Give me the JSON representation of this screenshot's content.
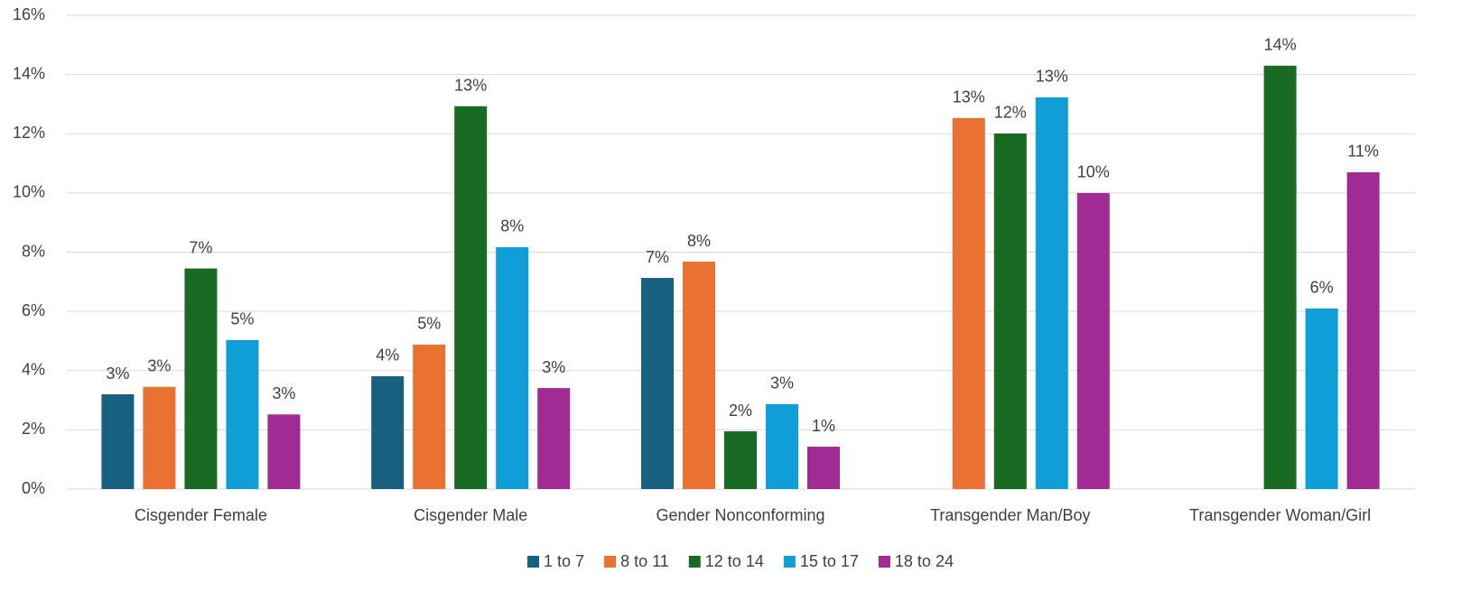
{
  "chart_data": {
    "type": "bar",
    "categories": [
      "Cisgender Female",
      "Cisgender Male",
      "Gender Nonconforming",
      "Transgender Man/Boy",
      "Transgender Woman/Girl"
    ],
    "series": [
      {
        "name": "1 to 7",
        "color": "#17607f",
        "values": [
          3.2,
          3.81,
          7.13,
          null,
          null
        ],
        "value_labels": [
          "3%",
          "4%",
          "7%",
          null,
          null
        ]
      },
      {
        "name": "8 to 11",
        "color": "#e97132",
        "values": [
          3.45,
          4.88,
          7.68,
          12.53,
          null
        ],
        "value_labels": [
          "3%",
          "5%",
          "8%",
          "13%",
          null
        ]
      },
      {
        "name": "12 to 14",
        "color": "#196b24",
        "values": [
          7.45,
          12.93,
          1.95,
          12.01,
          14.3
        ],
        "value_labels": [
          "7%",
          "13%",
          "2%",
          "12%",
          "14%"
        ]
      },
      {
        "name": "15 to 17",
        "color": "#0f9ed5",
        "values": [
          5.03,
          8.17,
          2.87,
          13.23,
          6.1
        ],
        "value_labels": [
          "5%",
          "8%",
          "3%",
          "13%",
          "6%"
        ]
      },
      {
        "name": "18 to 24",
        "color": "#a02b93",
        "values": [
          2.52,
          3.41,
          1.43,
          10.0,
          10.7
        ],
        "value_labels": [
          "3%",
          "3%",
          "1%",
          "10%",
          "11%"
        ]
      }
    ],
    "ylim": [
      0,
      16
    ],
    "yticks": [
      {
        "value": 0,
        "label": "0%"
      },
      {
        "value": 2,
        "label": "2%"
      },
      {
        "value": 4,
        "label": "4%"
      },
      {
        "value": 6,
        "label": "6%"
      },
      {
        "value": 8,
        "label": "8%"
      },
      {
        "value": 10,
        "label": "10%"
      },
      {
        "value": 12,
        "label": "12%"
      },
      {
        "value": 14,
        "label": "14%"
      },
      {
        "value": 16,
        "label": "16%"
      }
    ],
    "grid": true,
    "legend": "bottom"
  }
}
